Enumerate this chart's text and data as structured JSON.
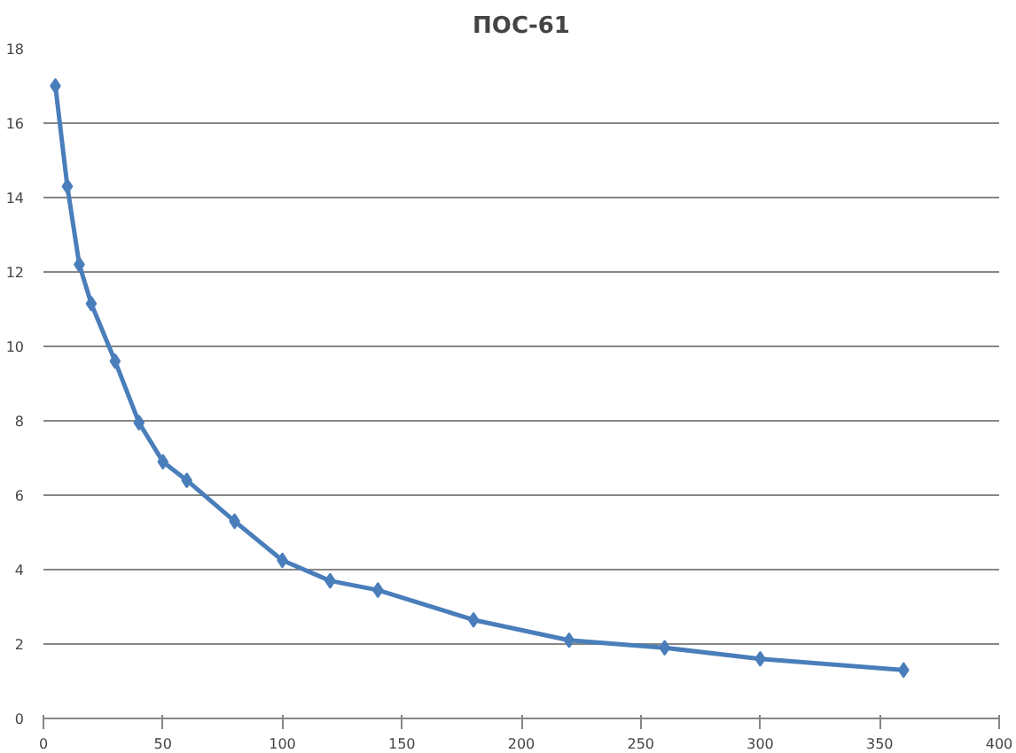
{
  "chart_data": {
    "type": "line",
    "title": "ПОС-61",
    "x": [
      5,
      10,
      15,
      20,
      30,
      40,
      50,
      60,
      80,
      100,
      120,
      140,
      180,
      220,
      260,
      300,
      360
    ],
    "series": [
      {
        "color": "#4a7ebb",
        "values": [
          17.0,
          14.3,
          12.2,
          11.15,
          9.6,
          7.95,
          6.9,
          6.4,
          5.3,
          4.25,
          3.7,
          3.45,
          2.65,
          2.1,
          1.9,
          1.6,
          1.3
        ]
      }
    ],
    "xlim": [
      0,
      400
    ],
    "xticks": [
      0,
      50,
      100,
      150,
      200,
      250,
      300,
      350,
      400
    ],
    "ylim": [
      0,
      18
    ],
    "yticks": [
      0,
      2,
      4,
      6,
      8,
      10,
      12,
      14,
      16,
      18
    ],
    "grid": "y",
    "marker": "diamond",
    "line_style": "solid"
  }
}
